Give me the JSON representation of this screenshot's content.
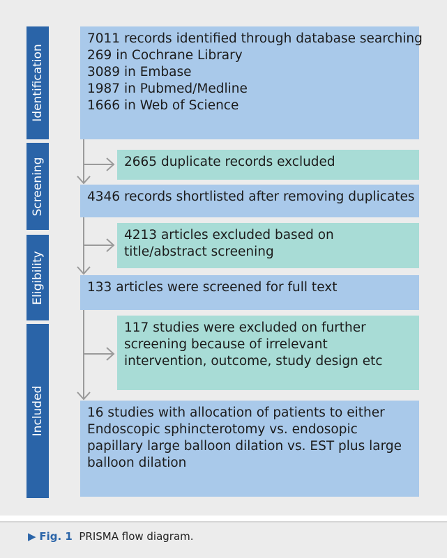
{
  "stages": [
    "Identification",
    "Screening",
    "Eligibility",
    "Included"
  ],
  "boxes": [
    [
      "7011 records identified through database searching",
      "269 in Cochrane Library",
      "3089 in Embase",
      "1987 in Pubmed/Medline",
      "1666 in Web of Science"
    ],
    [
      "4346 records shortlisted after removing duplicates"
    ],
    [
      "133 articles were screened for full text"
    ],
    [
      "16 studies with allocation of patients to either",
      "Endoscopic sphincterotomy vs. endosopic",
      "papillary large balloon dilation vs. EST plus large",
      "balloon dilation"
    ]
  ],
  "exclusions": [
    [
      "2665 duplicate records excluded"
    ],
    [
      "4213 articles excluded based on",
      "title/abstract screening"
    ],
    [
      "117 studies were excluded on further",
      "screening because of irrelevant",
      "intervention, outcome, study design etc"
    ]
  ],
  "caption": {
    "marker": "▶",
    "label": "Fig. 1",
    "text": "PRISMA flow diagram."
  }
}
